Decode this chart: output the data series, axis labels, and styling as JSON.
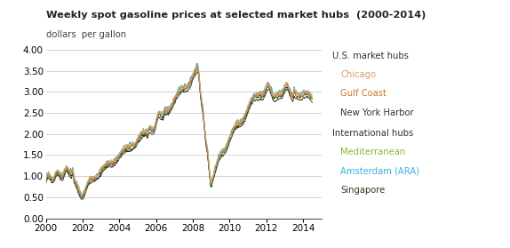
{
  "title": "Weekly spot gasoline prices at selected market hubs  (2000-2014)",
  "subtitle": "dollars  per gallon",
  "ylim": [
    0.0,
    4.0
  ],
  "yticks": [
    0.0,
    0.5,
    1.0,
    1.5,
    2.0,
    2.5,
    3.0,
    3.5,
    4.0
  ],
  "xticks": [
    2000,
    2002,
    2004,
    2006,
    2008,
    2010,
    2012,
    2014
  ],
  "xlim": [
    2000,
    2015
  ],
  "colors": {
    "chicago": "#d4a06a",
    "gulf_coast": "#c87828",
    "new_york": "#2d3d20",
    "mediterranean": "#8cb83a",
    "amsterdam": "#38b0d8",
    "singapore": "#2d3d20"
  },
  "legend": {
    "us_header": "U.S. market hubs",
    "us_items": [
      "Chicago",
      "Gulf Coast",
      "New York Harbor"
    ],
    "intl_header": "International hubs",
    "intl_items": [
      "Mediterranean",
      "Amsterdam (ARA)",
      "Singapore"
    ]
  },
  "background_color": "#ffffff",
  "grid_color": "#cccccc"
}
